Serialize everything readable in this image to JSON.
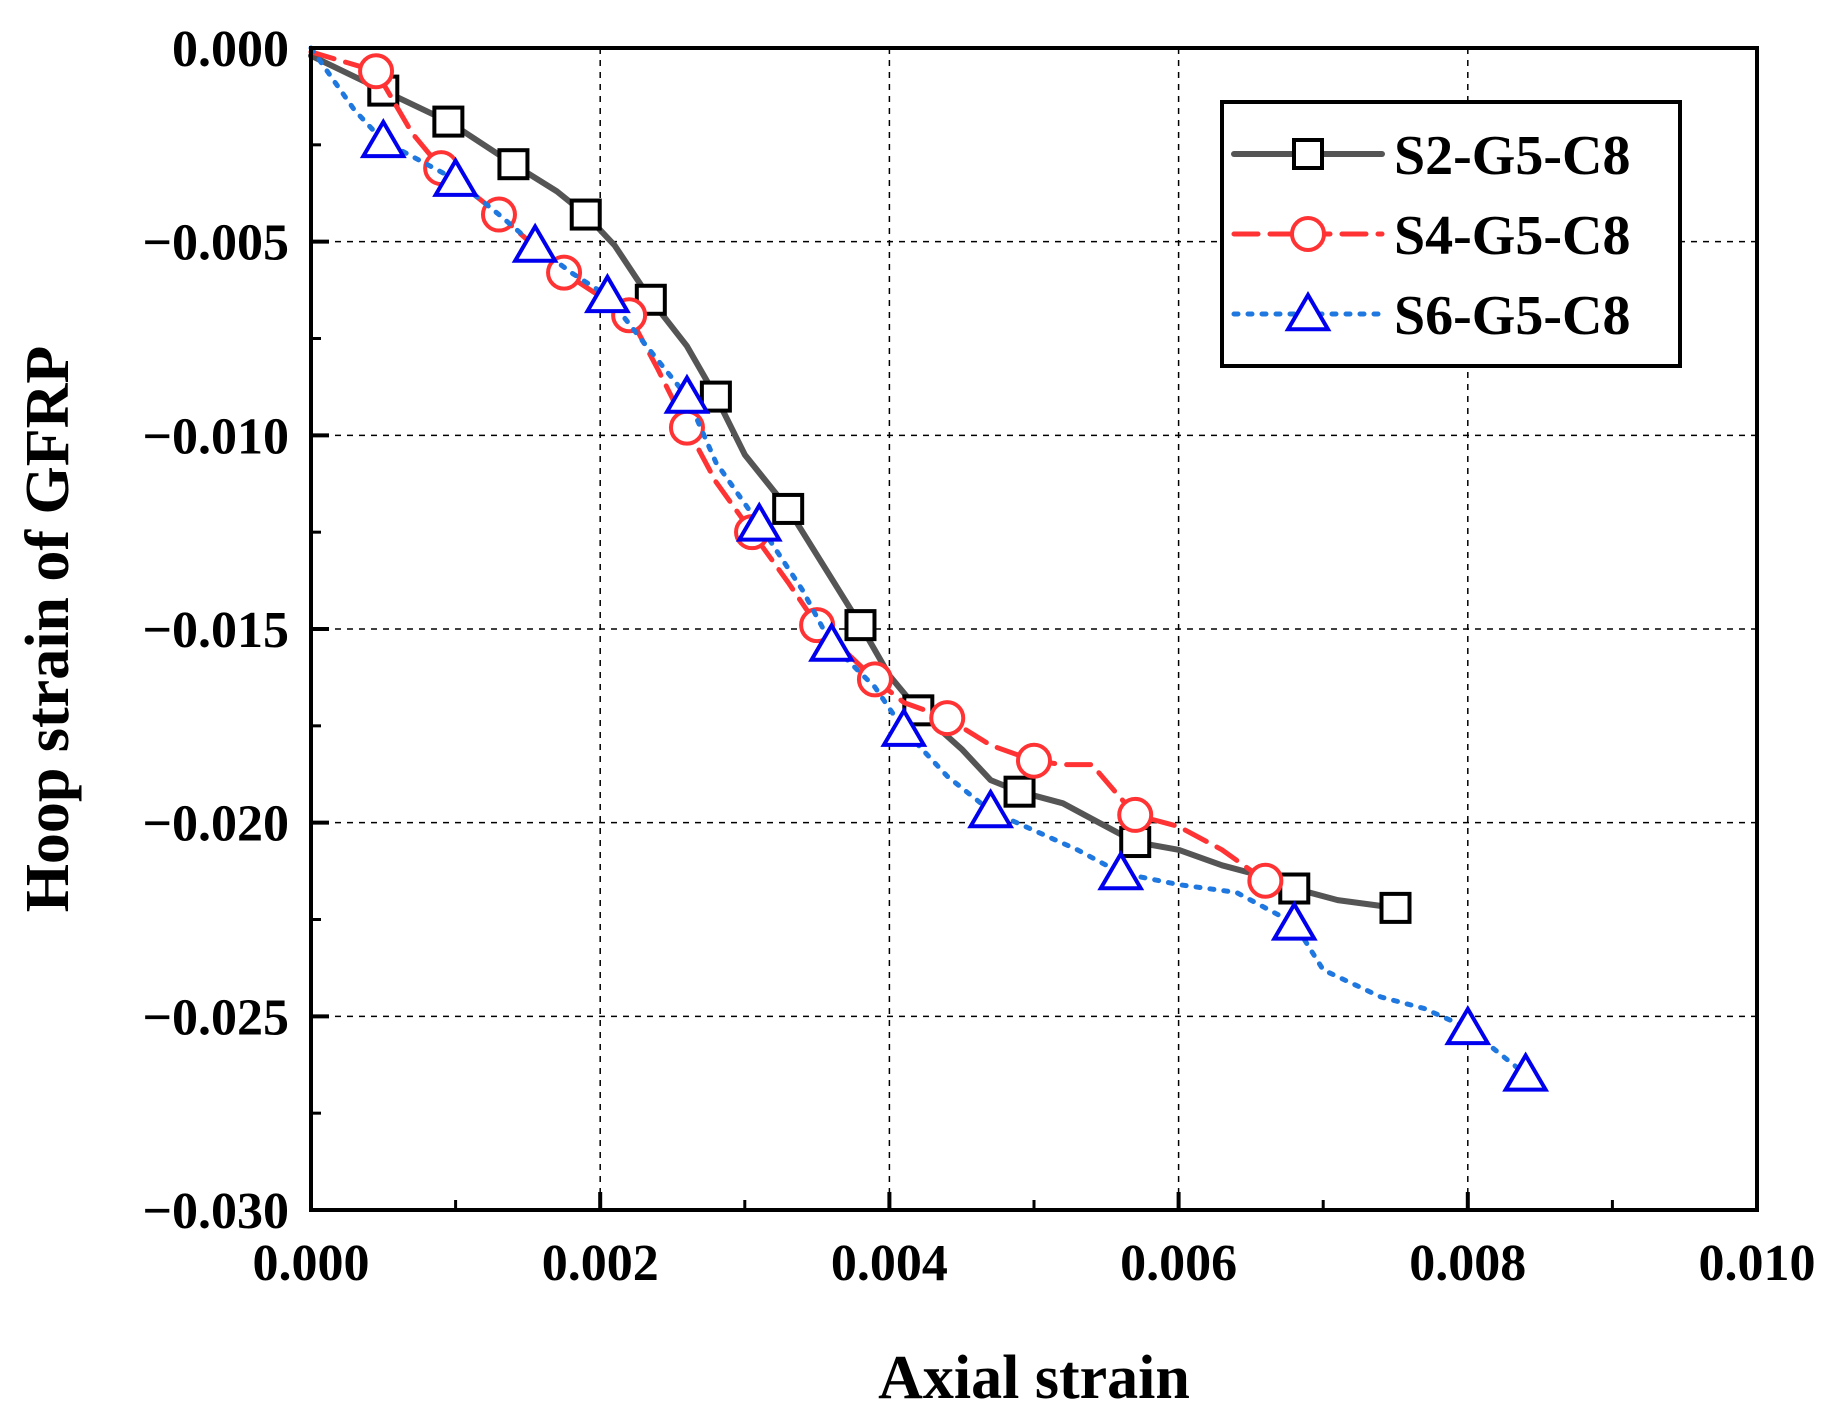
{
  "chart_data": {
    "type": "line",
    "title": "",
    "xlabel": "Axial strain",
    "ylabel": "Hoop strain of GFRP",
    "xlim": [
      0.0,
      0.01
    ],
    "ylim": [
      -0.03,
      0.0
    ],
    "x_ticks": [
      "0.000",
      "0.002",
      "0.004",
      "0.006",
      "0.008",
      "0.010"
    ],
    "y_ticks": [
      "0.000",
      "−0.005",
      "−0.010",
      "−0.015",
      "−0.020",
      "−0.025",
      "−0.030"
    ],
    "grid": true,
    "legend_position": "top-right",
    "series": [
      {
        "name": "S2-G5-C8",
        "color": "#555555",
        "line_style": "solid",
        "marker": "square",
        "line": [
          [
            0,
            -0.0002
          ],
          [
            0.0005,
            -0.0011
          ],
          [
            0.00095,
            -0.0019
          ],
          [
            0.0014,
            -0.003
          ],
          [
            0.0017,
            -0.0037
          ],
          [
            0.0019,
            -0.0043
          ],
          [
            0.0021,
            -0.0051
          ],
          [
            0.00235,
            -0.0065
          ],
          [
            0.0026,
            -0.0077
          ],
          [
            0.0028,
            -0.009
          ],
          [
            0.003,
            -0.0105
          ],
          [
            0.0033,
            -0.0119
          ],
          [
            0.0036,
            -0.0137
          ],
          [
            0.0038,
            -0.0149
          ],
          [
            0.004,
            -0.0162
          ],
          [
            0.0042,
            -0.0171
          ],
          [
            0.0045,
            -0.0181
          ],
          [
            0.0047,
            -0.0189
          ],
          [
            0.0049,
            -0.0192
          ],
          [
            0.0052,
            -0.0195
          ],
          [
            0.0054,
            -0.0199
          ],
          [
            0.0057,
            -0.0205
          ],
          [
            0.006,
            -0.0207
          ],
          [
            0.0063,
            -0.0211
          ],
          [
            0.0066,
            -0.0214
          ],
          [
            0.0068,
            -0.0217
          ],
          [
            0.0071,
            -0.022
          ],
          [
            0.0075,
            -0.0222
          ]
        ],
        "markers": [
          [
            0.0005,
            -0.0011
          ],
          [
            0.00095,
            -0.0019
          ],
          [
            0.0014,
            -0.003
          ],
          [
            0.0019,
            -0.0043
          ],
          [
            0.00235,
            -0.0065
          ],
          [
            0.0028,
            -0.009
          ],
          [
            0.0033,
            -0.0119
          ],
          [
            0.0038,
            -0.0149
          ],
          [
            0.0042,
            -0.0171
          ],
          [
            0.0049,
            -0.0192
          ],
          [
            0.0057,
            -0.0205
          ],
          [
            0.0068,
            -0.0217
          ],
          [
            0.0075,
            -0.0222
          ]
        ]
      },
      {
        "name": "S4-G5-C8",
        "color": "#ff3333",
        "line_style": "dashed",
        "marker": "circle",
        "line": [
          [
            0,
            -0.0001
          ],
          [
            0.00045,
            -0.0006
          ],
          [
            0.0007,
            -0.0022
          ],
          [
            0.0009,
            -0.0031
          ],
          [
            0.0013,
            -0.0043
          ],
          [
            0.00175,
            -0.0058
          ],
          [
            0.0022,
            -0.0069
          ],
          [
            0.0024,
            -0.0083
          ],
          [
            0.0026,
            -0.0098
          ],
          [
            0.0028,
            -0.0112
          ],
          [
            0.00305,
            -0.0125
          ],
          [
            0.0033,
            -0.0138
          ],
          [
            0.0035,
            -0.0149
          ],
          [
            0.0037,
            -0.0156
          ],
          [
            0.0039,
            -0.0163
          ],
          [
            0.0041,
            -0.0169
          ],
          [
            0.0044,
            -0.0173
          ],
          [
            0.0047,
            -0.018
          ],
          [
            0.005,
            -0.0184
          ],
          [
            0.0052,
            -0.0185
          ],
          [
            0.0054,
            -0.0185
          ],
          [
            0.0057,
            -0.0198
          ],
          [
            0.006,
            -0.0201
          ],
          [
            0.0063,
            -0.0207
          ],
          [
            0.0066,
            -0.0215
          ]
        ],
        "markers": [
          [
            0.00045,
            -0.0006
          ],
          [
            0.0009,
            -0.0031
          ],
          [
            0.0013,
            -0.0043
          ],
          [
            0.00175,
            -0.0058
          ],
          [
            0.0022,
            -0.0069
          ],
          [
            0.0026,
            -0.0098
          ],
          [
            0.00305,
            -0.0125
          ],
          [
            0.0035,
            -0.0149
          ],
          [
            0.0039,
            -0.0163
          ],
          [
            0.0044,
            -0.0173
          ],
          [
            0.005,
            -0.0184
          ],
          [
            0.0057,
            -0.0198
          ],
          [
            0.0066,
            -0.0215
          ]
        ]
      },
      {
        "name": "S6-G5-C8",
        "color": "#1f77e0",
        "line_style": "dotted",
        "marker": "triangle",
        "line": [
          [
            0,
            0.0
          ],
          [
            0.0003,
            -0.0016
          ],
          [
            0.0005,
            -0.0024
          ],
          [
            0.00075,
            -0.0029
          ],
          [
            0.001,
            -0.0034
          ],
          [
            0.0013,
            -0.0043
          ],
          [
            0.00155,
            -0.0051
          ],
          [
            0.0018,
            -0.0058
          ],
          [
            0.00205,
            -0.0064
          ],
          [
            0.0023,
            -0.0076
          ],
          [
            0.0026,
            -0.009
          ],
          [
            0.0028,
            -0.0107
          ],
          [
            0.0031,
            -0.0123
          ],
          [
            0.0034,
            -0.014
          ],
          [
            0.0036,
            -0.0154
          ],
          [
            0.0039,
            -0.0165
          ],
          [
            0.0041,
            -0.0176
          ],
          [
            0.0044,
            -0.0188
          ],
          [
            0.0047,
            -0.0197
          ],
          [
            0.005,
            -0.0202
          ],
          [
            0.0053,
            -0.0207
          ],
          [
            0.0056,
            -0.0213
          ],
          [
            0.006,
            -0.0216
          ],
          [
            0.0064,
            -0.0218
          ],
          [
            0.0068,
            -0.0226
          ],
          [
            0.007,
            -0.0238
          ],
          [
            0.0074,
            -0.0245
          ],
          [
            0.0077,
            -0.0248
          ],
          [
            0.008,
            -0.0253
          ],
          [
            0.0084,
            -0.0265
          ]
        ],
        "markers": [
          [
            0.0005,
            -0.0024
          ],
          [
            0.001,
            -0.0034
          ],
          [
            0.00155,
            -0.0051
          ],
          [
            0.00205,
            -0.0064
          ],
          [
            0.0026,
            -0.009
          ],
          [
            0.0031,
            -0.0123
          ],
          [
            0.0036,
            -0.0154
          ],
          [
            0.0041,
            -0.0176
          ],
          [
            0.0047,
            -0.0197
          ],
          [
            0.0056,
            -0.0213
          ],
          [
            0.0068,
            -0.0226
          ],
          [
            0.008,
            -0.0253
          ],
          [
            0.0084,
            -0.0265
          ]
        ]
      }
    ]
  }
}
